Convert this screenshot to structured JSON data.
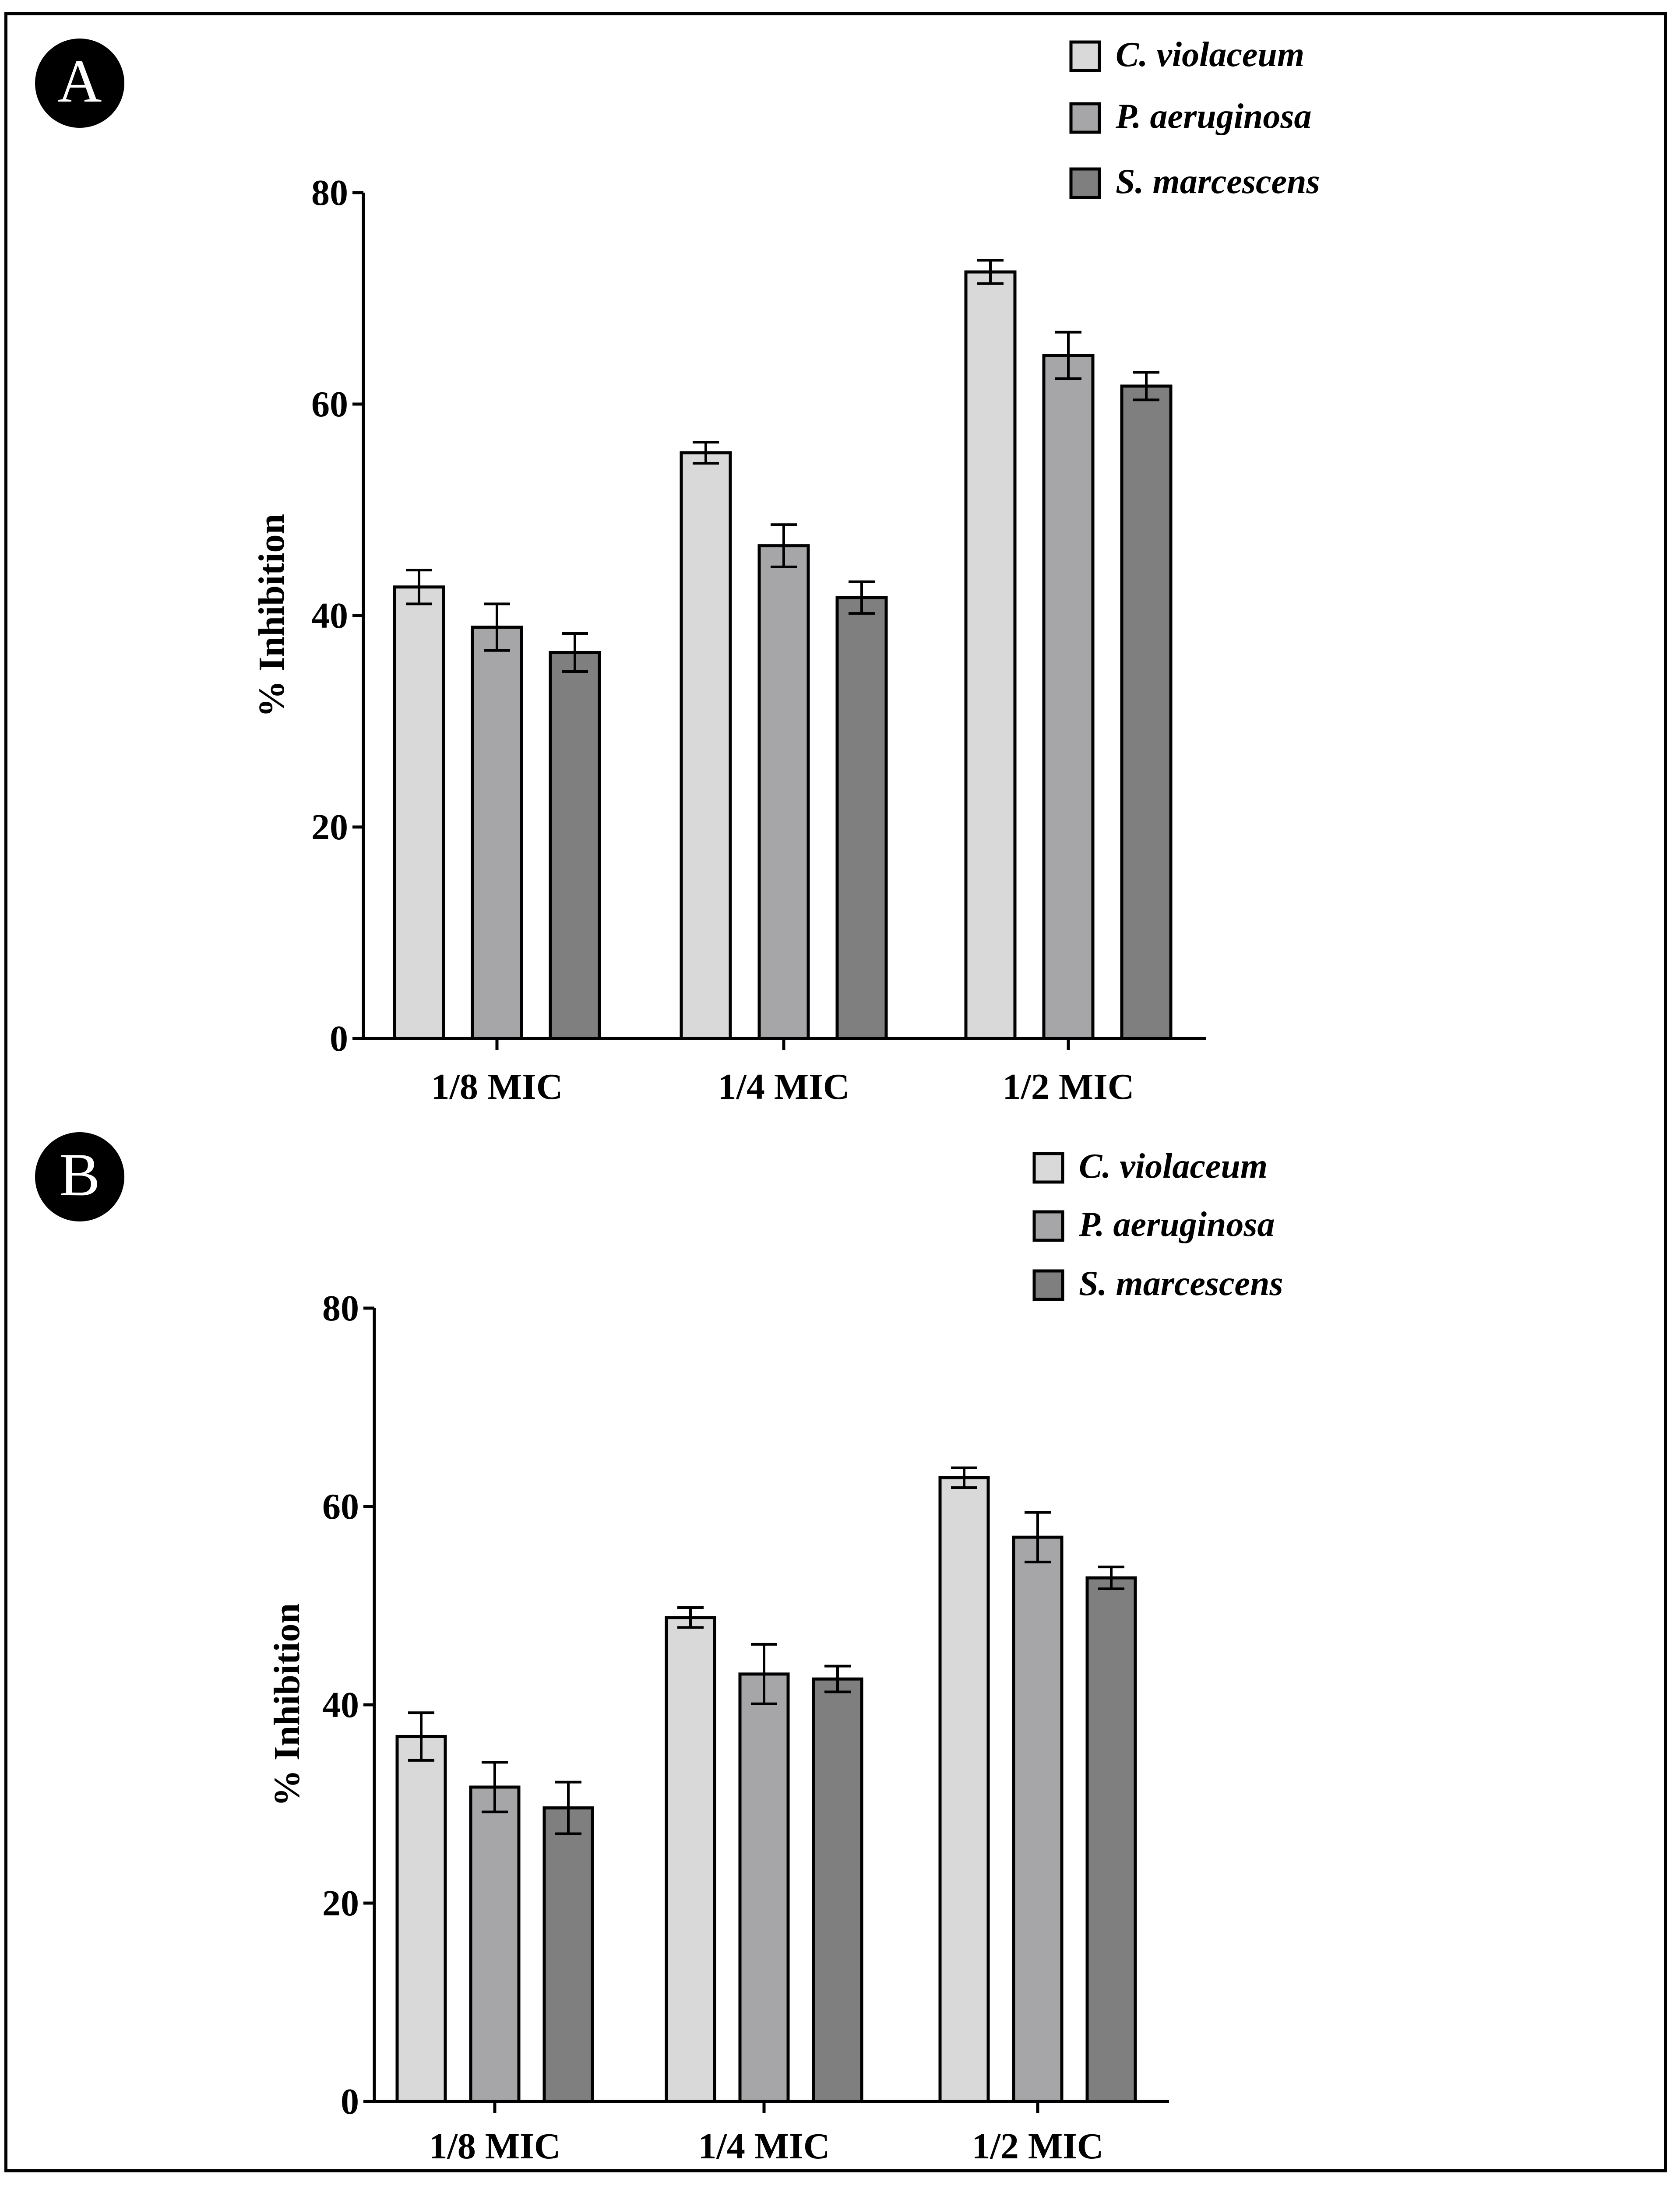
{
  "colors": {
    "series": [
      "#d9d9d9",
      "#a6a6a8",
      "#7f7f7f"
    ],
    "panel_label_bg": "#000000",
    "panel_label_fg": "#ffffff"
  },
  "chart_data": [
    {
      "panel_label": "A",
      "type": "bar",
      "title": "",
      "xlabel": "",
      "ylabel": "% Inhibition",
      "ylim": [
        0,
        80
      ],
      "yticks": [
        "0",
        "20",
        "40",
        "60",
        "80"
      ],
      "grid": false,
      "legend_position": "top-right",
      "categories": [
        "1/8 MIC",
        "1/4 MIC",
        "1/2 MIC"
      ],
      "series": [
        {
          "name": "C. violaceum",
          "values": [
            42.7,
            55.4,
            72.5
          ],
          "errors": [
            1.6,
            1.0,
            1.1
          ]
        },
        {
          "name": "P. aeruginosa",
          "values": [
            38.9,
            46.6,
            64.6
          ],
          "errors": [
            2.2,
            2.0,
            2.2
          ]
        },
        {
          "name": "S. marcescens",
          "values": [
            36.5,
            41.7,
            61.7
          ],
          "errors": [
            1.8,
            1.5,
            1.3
          ]
        }
      ]
    },
    {
      "panel_label": "B",
      "type": "bar",
      "title": "",
      "xlabel": "",
      "ylabel": "% Inhibition",
      "ylim": [
        0,
        80
      ],
      "yticks": [
        "0",
        "20",
        "40",
        "60",
        "80"
      ],
      "grid": false,
      "legend_position": "top-right",
      "categories": [
        "1/8 MIC",
        "1/4 MIC",
        "1/2 MIC"
      ],
      "series": [
        {
          "name": "C. violaceum",
          "values": [
            36.8,
            48.8,
            62.9
          ],
          "errors": [
            2.4,
            1.0,
            1.0
          ]
        },
        {
          "name": "P. aeruginosa",
          "values": [
            31.7,
            43.1,
            56.9
          ],
          "errors": [
            2.5,
            3.0,
            2.5
          ]
        },
        {
          "name": "S. marcescens",
          "values": [
            29.6,
            42.6,
            52.8
          ],
          "errors": [
            2.6,
            1.3,
            1.1
          ]
        }
      ]
    }
  ]
}
